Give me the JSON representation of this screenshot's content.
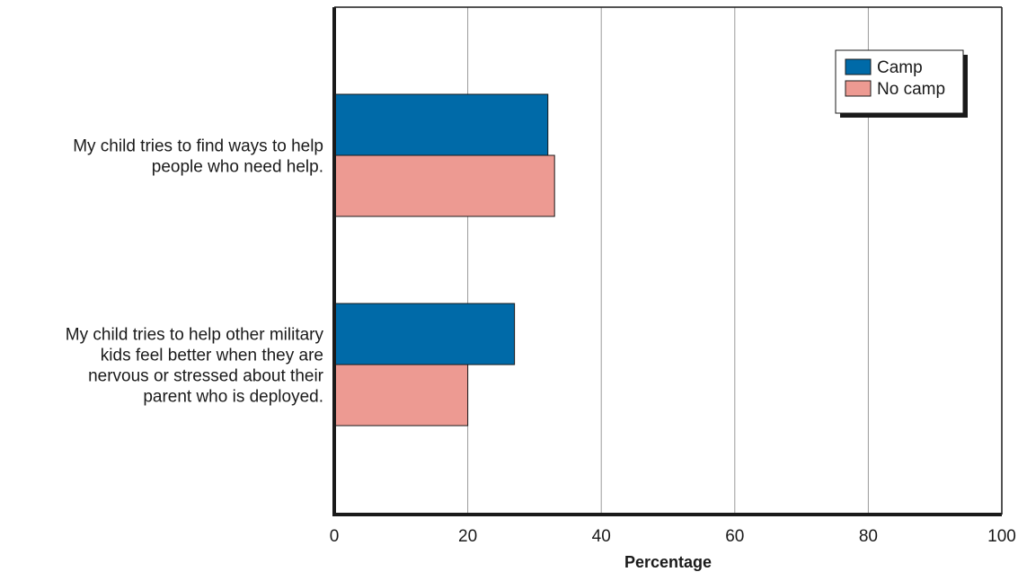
{
  "chart_data": {
    "type": "bar",
    "orientation": "horizontal",
    "categories": [
      [
        "My child tries to find ways to help",
        "people who need help."
      ],
      [
        "My child tries to help other military",
        "kids feel better when they are",
        "nervous or stressed about their",
        "parent who is deployed."
      ]
    ],
    "series": [
      {
        "name": "Camp",
        "color": "#006aa8",
        "values": [
          32,
          27
        ]
      },
      {
        "name": "No camp",
        "color": "#ed9a92",
        "values": [
          33,
          20
        ]
      }
    ],
    "xlabel": "Percentage",
    "xlim": [
      0,
      100
    ],
    "xticks": [
      "0",
      "20",
      "40",
      "60",
      "80",
      "100"
    ],
    "grid": "vertical",
    "legend": "top-right"
  }
}
